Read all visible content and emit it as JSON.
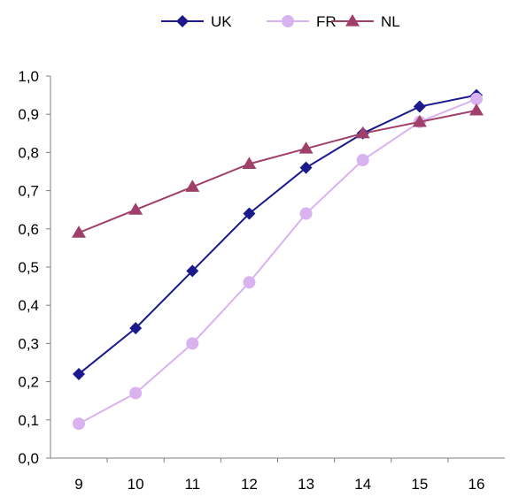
{
  "chart_data": {
    "type": "line",
    "title": "",
    "xlabel": "",
    "ylabel": "",
    "x": [
      9,
      10,
      11,
      12,
      13,
      14,
      15,
      16
    ],
    "x_tick_labels": [
      "9",
      "10",
      "11",
      "12",
      "13",
      "14",
      "15",
      "16"
    ],
    "ylim": [
      0,
      1.0
    ],
    "y_tick_labels": [
      "0,0",
      "0,1",
      "0,2",
      "0,3",
      "0,4",
      "0,5",
      "0,6",
      "0,7",
      "0,8",
      "0,9",
      "1,0"
    ],
    "grid": false,
    "legend_position": "top-center",
    "series": [
      {
        "name": "UK",
        "color": "#1a1a8c",
        "marker": "diamond",
        "values": [
          0.22,
          0.34,
          0.49,
          0.64,
          0.76,
          0.85,
          0.92,
          0.95
        ]
      },
      {
        "name": "FR",
        "color": "#d9b3f0",
        "marker": "circle",
        "values": [
          0.09,
          0.17,
          0.3,
          0.46,
          0.64,
          0.78,
          0.88,
          0.94
        ]
      },
      {
        "name": "NL",
        "color": "#a0406a",
        "marker": "triangle",
        "values": [
          0.59,
          0.65,
          0.71,
          0.77,
          0.81,
          0.85,
          0.88,
          0.91
        ]
      }
    ]
  }
}
